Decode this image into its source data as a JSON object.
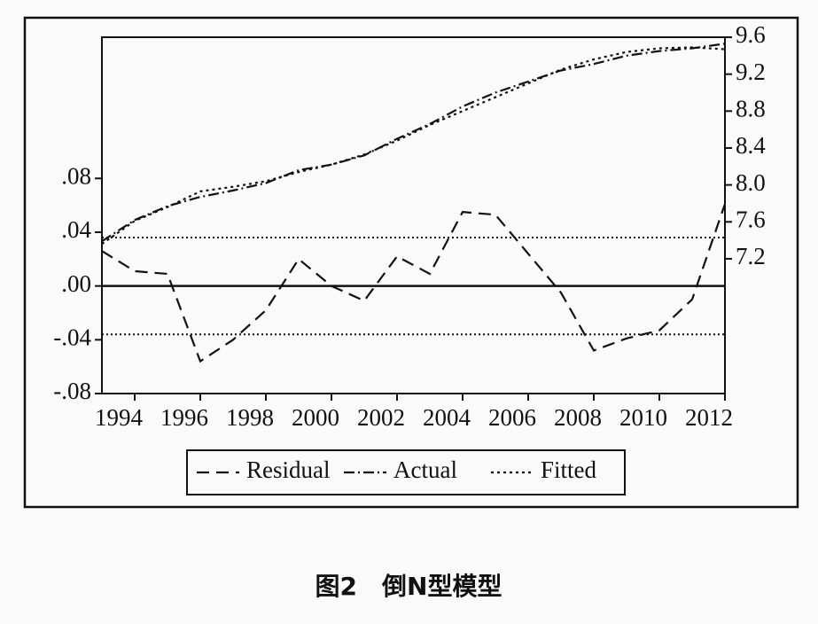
{
  "chart_data": {
    "type": "line",
    "caption": "图2　倒N型模型",
    "x": [
      1993,
      1994,
      1995,
      1996,
      1997,
      1998,
      1999,
      2000,
      2001,
      2002,
      2003,
      2004,
      2005,
      2006,
      2007,
      2008,
      2009,
      2010,
      2011,
      2012
    ],
    "xlim": [
      1993,
      2012
    ],
    "xticks": [
      1994,
      1996,
      1998,
      2000,
      2002,
      2004,
      2006,
      2008,
      2010,
      2012
    ],
    "ylim": [
      -0.08,
      0.185
    ],
    "yticks": [
      {
        "value": 0.08,
        "label": ".08"
      },
      {
        "value": 0.04,
        "label": ".04"
      },
      {
        "value": 0,
        "label": ".00"
      },
      {
        "value": -0.04,
        "label": "-.04"
      },
      {
        "value": -0.08,
        "label": "-.08"
      }
    ],
    "y2lim": [
      5.74,
      9.6
    ],
    "y2ticks": [
      9.6,
      9.2,
      8.8,
      8.4,
      {
        "value": 8.0,
        "label": "8.0"
      },
      7.6,
      7.2
    ],
    "reference_lines": [
      {
        "value": 0.036,
        "style": "dotted"
      },
      {
        "value": 0,
        "style": "solid"
      },
      {
        "value": -0.036,
        "style": "dotted"
      }
    ],
    "series": [
      {
        "name": "Residual",
        "color": "#111111",
        "dash": "14 8",
        "values": [
          0.026,
          0.011,
          0.009,
          -0.056,
          -0.04,
          -0.018,
          0.02,
          0.0,
          -0.011,
          0.022,
          0.009,
          0.055,
          0.053,
          0.024,
          -0.005,
          -0.048,
          -0.039,
          -0.033,
          -0.01,
          0.061
        ]
      },
      {
        "name": "Actual",
        "color": "#111111",
        "dash": "12 4 2 4",
        "axis": "y2",
        "values": [
          7.39,
          7.62,
          7.77,
          7.87,
          7.94,
          8.02,
          8.16,
          8.22,
          8.32,
          8.5,
          8.66,
          8.85,
          9.0,
          9.12,
          9.24,
          9.31,
          9.4,
          9.45,
          9.48,
          9.53
        ]
      },
      {
        "name": "Fitted",
        "color": "#111111",
        "dash": "3 4",
        "axis": "y2",
        "values": [
          7.36,
          7.61,
          7.76,
          7.93,
          7.98,
          8.04,
          8.14,
          8.22,
          8.33,
          8.48,
          8.65,
          8.8,
          8.95,
          9.1,
          9.25,
          9.36,
          9.44,
          9.48,
          9.49,
          9.47
        ]
      }
    ]
  }
}
